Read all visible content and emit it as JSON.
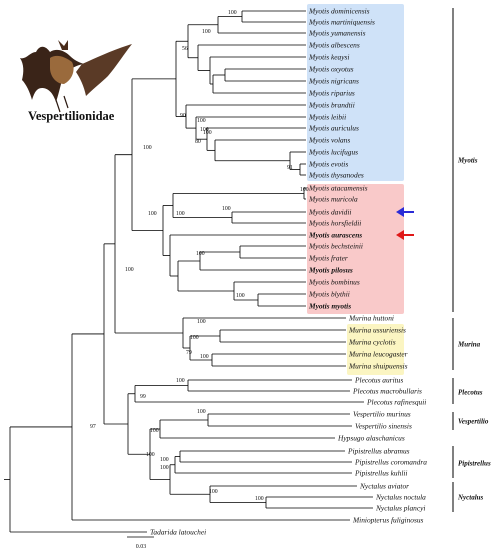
{
  "figure": {
    "family_label": "Vespertilionidae",
    "scale_label": "0.03"
  },
  "taxa": [
    "Myotis dominicensis",
    "Myotis martiniquensis",
    "Myotis yumanensis",
    "Myotis albescens",
    "Myotis keaysi",
    "Myotis oxyotus",
    "Myotis nigricans",
    "Myotis riparius",
    "Myotis brandtii",
    "Myotis leibii",
    "Myotis auriculus",
    "Myotis volans",
    "Myotis lucifugus",
    "Myotis evotis",
    "Myotis thysanodes",
    "Myotis atacamensis",
    "Myotis muricola",
    "Myotis davidii",
    "Myotis horsfieldii",
    "Myotis aurascens",
    "Myotis bechsteinii",
    "Myotis frater",
    "Myotis pilosus",
    "Myotis bombinus",
    "Myotis blythii",
    "Myotis myotis",
    "Murina huttoni",
    "Murina ussuriensis",
    "Murina cyclotis",
    "Murina leucogaster",
    "Murina shuipuensis",
    "Plecotus auritus",
    "Plecotus macrobullaris",
    "Plecotus rafinesquii",
    "Vespertilio murinus",
    "Vespertilio sinensis",
    "Hypsugo alaschanicus",
    "Pipistrellus abramus",
    "Pipistrellus coromandra",
    "Pipistrellus kuhlii",
    "Nyctalus aviator",
    "Nyctalus noctula",
    "Nyctalus plancyi",
    "Miniopterus fuliginosus",
    "Tadarida latouchei"
  ],
  "bootstrap": [
    "100",
    "56",
    "100",
    "90",
    "100",
    "100",
    "100",
    "80",
    "91",
    "100",
    "100",
    "100",
    "100",
    "100",
    "100",
    "100",
    "100",
    "100",
    "100",
    "100",
    "79",
    "100",
    "99",
    "100",
    "100",
    "97",
    "100",
    "100",
    "100",
    "100",
    "100"
  ],
  "groups": [
    "Myotis",
    "Murina",
    "Plecotus",
    "Vespertilio",
    "Pipistrellus",
    "Nyctalus"
  ],
  "highlight_colors": {
    "blue": "#cfe2f8",
    "red": "#f9c9c9",
    "yellow": "#fbf5c2"
  },
  "arrow_colors": {
    "blue_arrow": "#2b2bd6",
    "red_arrow": "#e01818"
  }
}
